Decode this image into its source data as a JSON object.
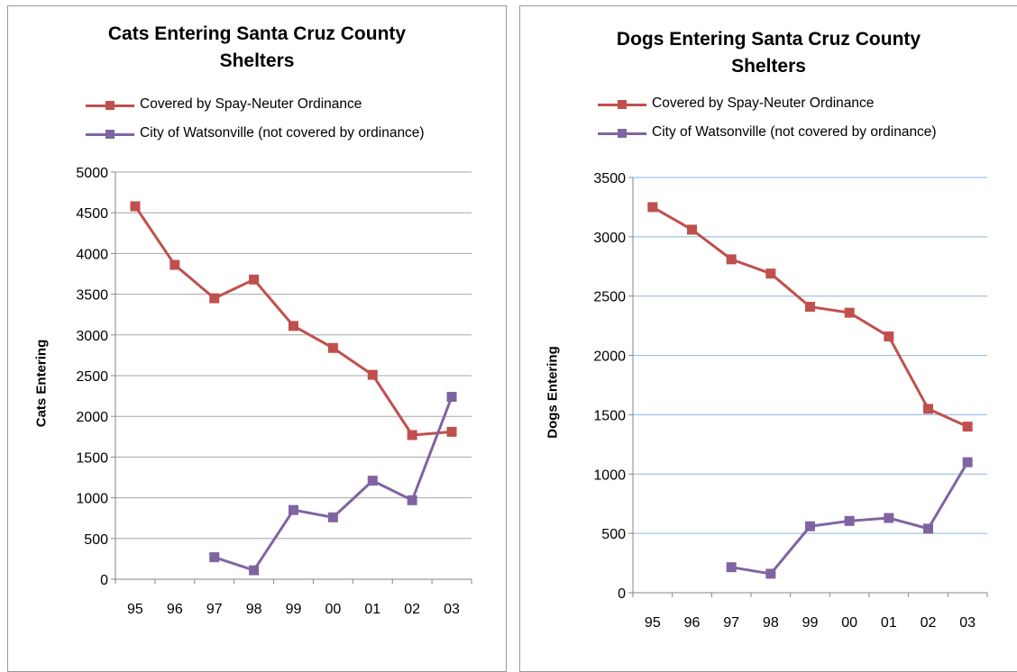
{
  "colors": {
    "covered": "#c0504d",
    "watsonville": "#8064a2"
  },
  "charts": [
    {
      "title": "Cats Entering Santa Cruz County\nShelters",
      "ylabel": "Cats Entering",
      "legend": [
        "Covered by Spay-Neuter Ordinance",
        "City of Watsonville (not covered by ordinance)"
      ]
    },
    {
      "title": "Dogs Entering Santa Cruz County\nShelters",
      "ylabel": "Dogs Entering",
      "legend": [
        "Covered by Spay-Neuter Ordinance",
        "City of Watsonville (not covered by ordinance)"
      ]
    }
  ],
  "chart_data": [
    {
      "type": "line",
      "title": "Cats Entering Santa Cruz County Shelters",
      "xlabel": "",
      "ylabel": "Cats Entering",
      "categories": [
        "95",
        "96",
        "97",
        "98",
        "99",
        "00",
        "01",
        "02",
        "03"
      ],
      "ylim": [
        0,
        5000
      ],
      "yticks": [
        0,
        500,
        1000,
        1500,
        2000,
        2500,
        3000,
        3500,
        4000,
        4500,
        5000
      ],
      "grid": "horizontal",
      "grid_color": "#a6a6a6",
      "legend_position": "top",
      "series": [
        {
          "name": "Covered by Spay-Neuter Ordinance",
          "color": "#c0504d",
          "values": [
            4580,
            3860,
            3450,
            3680,
            3110,
            2840,
            2510,
            1770,
            1810
          ]
        },
        {
          "name": "City of Watsonville (not covered by ordinance)",
          "color": "#8064a2",
          "values": [
            null,
            null,
            270,
            110,
            850,
            760,
            1210,
            970,
            2240
          ]
        }
      ]
    },
    {
      "type": "line",
      "title": "Dogs Entering Santa Cruz County Shelters",
      "xlabel": "",
      "ylabel": "Dogs Entering",
      "categories": [
        "95",
        "96",
        "97",
        "98",
        "99",
        "00",
        "01",
        "02",
        "03"
      ],
      "ylim": [
        0,
        3500
      ],
      "yticks": [
        0,
        500,
        1000,
        1500,
        2000,
        2500,
        3000,
        3500
      ],
      "grid": "horizontal",
      "grid_color": "#8db3e2",
      "legend_position": "top",
      "series": [
        {
          "name": "Covered by Spay-Neuter Ordinance",
          "color": "#c0504d",
          "values": [
            3250,
            3060,
            2810,
            2690,
            2410,
            2360,
            2160,
            1550,
            1400
          ]
        },
        {
          "name": "City of Watsonville (not covered by ordinance)",
          "color": "#8064a2",
          "values": [
            null,
            null,
            215,
            160,
            560,
            605,
            630,
            540,
            1100
          ]
        }
      ]
    }
  ]
}
